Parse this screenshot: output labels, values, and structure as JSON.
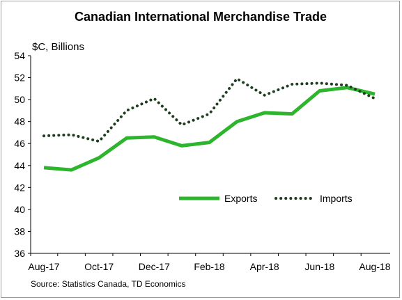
{
  "chart_data": {
    "type": "line",
    "title": "Canadian International Merchandise Trade",
    "ylabel": "$C, Billions",
    "xlabel": "",
    "source": "Source: Statistics Canada, TD Economics",
    "ylim": [
      36,
      54
    ],
    "yticks": [
      "36",
      "38",
      "40",
      "42",
      "44",
      "46",
      "48",
      "50",
      "52",
      "54"
    ],
    "x": [
      "Aug-17",
      "Sep-17",
      "Oct-17",
      "Nov-17",
      "Dec-17",
      "Jan-18",
      "Feb-18",
      "Mar-18",
      "Apr-18",
      "May-18",
      "Jun-18",
      "Jul-18",
      "Aug-18"
    ],
    "xtick_labels": [
      "Aug-17",
      "Oct-17",
      "Dec-17",
      "Feb-18",
      "Apr-18",
      "Jun-18",
      "Aug-18"
    ],
    "legend_position": "lower-right",
    "grid": false,
    "series": [
      {
        "name": "Exports",
        "style": "solid",
        "color": "#2db52d",
        "values": [
          43.8,
          43.6,
          44.7,
          46.5,
          46.6,
          45.8,
          46.1,
          48.0,
          48.8,
          48.7,
          50.8,
          51.1,
          50.5
        ]
      },
      {
        "name": "Imports",
        "style": "dotted",
        "color": "#1f3d1f",
        "values": [
          46.7,
          46.8,
          46.2,
          49.0,
          50.1,
          47.7,
          48.7,
          51.9,
          50.4,
          51.4,
          51.5,
          51.3,
          50.1
        ]
      }
    ]
  }
}
